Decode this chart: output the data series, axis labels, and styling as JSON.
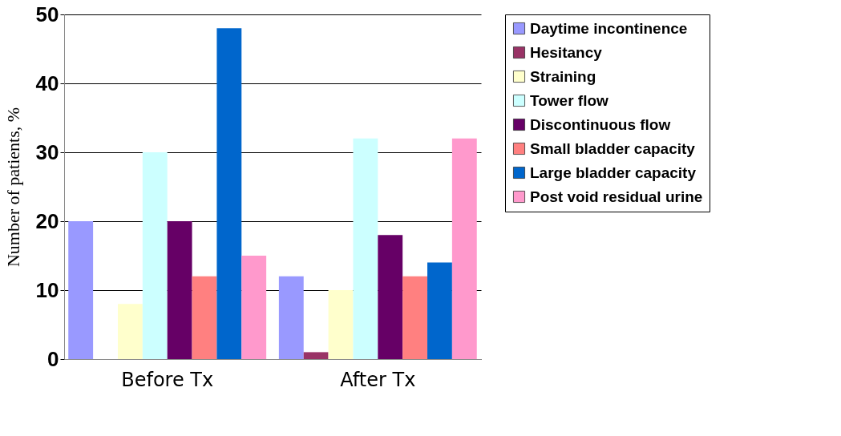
{
  "chart_data": {
    "type": "bar",
    "ylabel": "Number of patients, %",
    "categories": [
      "Before Tx",
      "After Tx"
    ],
    "series": [
      {
        "name": "Daytime incontinence",
        "color": "#9999ff",
        "values": [
          20,
          12
        ]
      },
      {
        "name": "Hesitancy",
        "color": "#993366",
        "values": [
          0,
          1
        ]
      },
      {
        "name": "Straining",
        "color": "#ffffcc",
        "values": [
          8,
          10
        ]
      },
      {
        "name": "Tower flow",
        "color": "#ccffff",
        "values": [
          30,
          32
        ]
      },
      {
        "name": "Discontinuous flow",
        "color": "#660066",
        "values": [
          20,
          18
        ]
      },
      {
        "name": "Small bladder capacity",
        "color": "#ff8080",
        "values": [
          12,
          12
        ]
      },
      {
        "name": "Large bladder capacity",
        "color": "#0066cc",
        "values": [
          48,
          14
        ]
      },
      {
        "name": "Post void residual urine",
        "color": "#ff99cc",
        "values": [
          15,
          32
        ]
      }
    ],
    "ylim": [
      0,
      50
    ],
    "yticks": [
      0,
      10,
      20,
      30,
      40,
      50
    ],
    "grid": "y",
    "legend": "right"
  }
}
